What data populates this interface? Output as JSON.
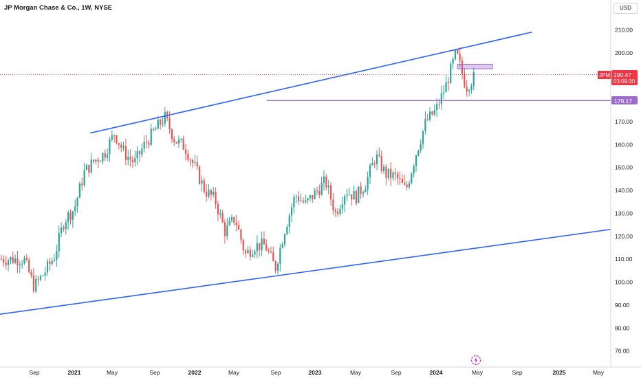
{
  "header": {
    "title": "JP Morgan Chase & Co., 1W, NYSE",
    "currency": "USD"
  },
  "colors": {
    "up": "#26a69a",
    "down": "#ef5350",
    "trendline": "#2962ff",
    "level": "#9c6bd0",
    "last_price": "#f23645",
    "grid_text": "#131722"
  },
  "price_tag": {
    "symbol": "JPM",
    "price": "190.47",
    "countdown": "03:09:30"
  },
  "level_tag": {
    "price": "179.17"
  },
  "icons": {
    "watermark": "tradingview-lightning-icon"
  },
  "chart_data": {
    "type": "candlestick",
    "title": "JP Morgan Chase & Co., 1W, NYSE",
    "y_axis": {
      "min": 63,
      "max": 223,
      "ticks": [
        "210.00",
        "200.00",
        "190.00",
        "180.00",
        "170.00",
        "160.00",
        "150.00",
        "140.00",
        "130.00",
        "120.00",
        "110.00",
        "100.00",
        "90.00",
        "80.00",
        "70.00"
      ]
    },
    "x_axis": {
      "ticks": [
        "Sep",
        "2021",
        "May",
        "Sep",
        "2022",
        "May",
        "Sep",
        "2023",
        "May",
        "Sep",
        "2024",
        "May",
        "Sep",
        "2025",
        "May"
      ]
    },
    "series_points": [
      [
        "2020-08",
        110
      ],
      [
        "2020-09",
        98
      ],
      [
        "2020-10",
        104
      ],
      [
        "2020-11",
        111
      ],
      [
        "2020-12",
        127
      ],
      [
        "2021-01",
        132
      ],
      [
        "2021-02",
        148
      ],
      [
        "2021-03",
        153
      ],
      [
        "2021-04",
        156
      ],
      [
        "2021-05",
        165
      ],
      [
        "2021-06",
        156
      ],
      [
        "2021-07",
        152
      ],
      [
        "2021-08",
        160
      ],
      [
        "2021-09",
        166
      ],
      [
        "2021-10",
        172
      ],
      [
        "2021-11",
        162
      ],
      [
        "2021-12",
        159
      ],
      [
        "2022-01",
        150
      ],
      [
        "2022-02",
        140
      ],
      [
        "2022-03",
        136
      ],
      [
        "2022-04",
        122
      ],
      [
        "2022-05",
        128
      ],
      [
        "2022-06",
        112
      ],
      [
        "2022-07",
        116
      ],
      [
        "2022-08",
        116
      ],
      [
        "2022-09",
        106
      ],
      [
        "2022-10",
        124
      ],
      [
        "2022-11",
        138
      ],
      [
        "2022-12",
        134
      ],
      [
        "2023-01",
        139
      ],
      [
        "2023-02",
        144
      ],
      [
        "2023-03",
        130
      ],
      [
        "2023-04",
        140
      ],
      [
        "2023-05",
        137
      ],
      [
        "2023-06",
        143
      ],
      [
        "2023-07",
        155
      ],
      [
        "2023-08",
        147
      ],
      [
        "2023-09",
        146
      ],
      [
        "2023-10",
        140
      ],
      [
        "2023-11",
        156
      ],
      [
        "2023-12",
        170
      ],
      [
        "2024-01",
        175
      ],
      [
        "2024-02",
        186
      ],
      [
        "2024-03",
        200
      ],
      [
        "2024-04",
        185
      ],
      [
        "2024-05",
        190.47
      ]
    ],
    "annotations": {
      "upper_trendline": [
        [
          "2021-03",
          165
        ],
        [
          "2024-10",
          209
        ]
      ],
      "lower_trendline": [
        [
          "2020-08",
          86
        ],
        [
          "2025-05",
          123
        ]
      ],
      "horizontal_level": 179.17,
      "resistance_box": [
        195,
        193
      ]
    }
  }
}
